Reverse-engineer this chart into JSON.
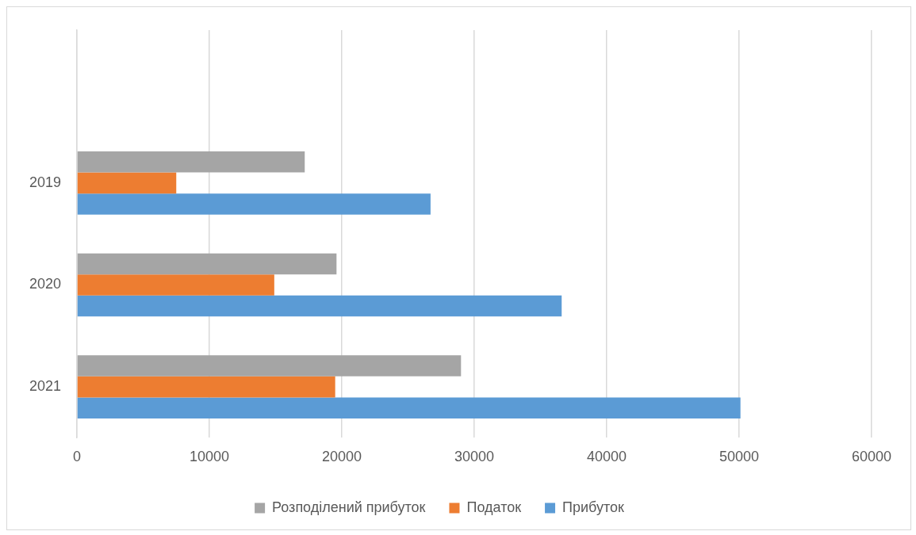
{
  "chart_data": {
    "type": "bar",
    "orientation": "horizontal",
    "categories": [
      null,
      "2019",
      "2020",
      "2021"
    ],
    "series": [
      {
        "name": "Розподілений прибуток",
        "color": "#a5a5a5",
        "values": [
          null,
          17200,
          19600,
          29000
        ]
      },
      {
        "name": "Податок",
        "color": "#ed7d31",
        "values": [
          null,
          7500,
          14900,
          19500
        ]
      },
      {
        "name": "Прибуток",
        "color": "#5b9bd5",
        "values": [
          null,
          26700,
          36600,
          50100
        ]
      }
    ],
    "xlim": [
      0,
      60000
    ],
    "xticks": [
      0,
      10000,
      20000,
      30000,
      40000,
      50000,
      60000
    ],
    "grid": "x",
    "legend": "bottom"
  }
}
